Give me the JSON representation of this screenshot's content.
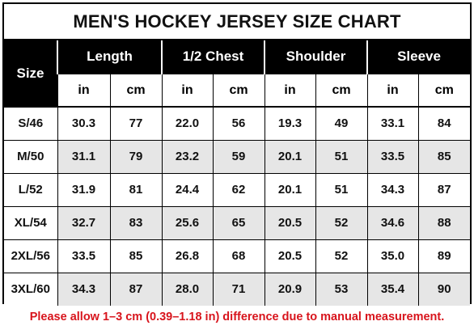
{
  "title": "MEN'S HOCKEY JERSEY SIZE CHART",
  "header": {
    "size_label": "Size",
    "groups": [
      "Length",
      "1/2 Chest",
      "Shoulder",
      "Sleeve"
    ],
    "units": [
      "in",
      "cm",
      "in",
      "cm",
      "in",
      "cm",
      "in",
      "cm"
    ]
  },
  "rows": [
    {
      "size": "S/46",
      "values": [
        "30.3",
        "77",
        "22.0",
        "56",
        "19.3",
        "49",
        "33.1",
        "84"
      ]
    },
    {
      "size": "M/50",
      "values": [
        "31.1",
        "79",
        "23.2",
        "59",
        "20.1",
        "51",
        "33.5",
        "85"
      ]
    },
    {
      "size": "L/52",
      "values": [
        "31.9",
        "81",
        "24.4",
        "62",
        "20.1",
        "51",
        "34.3",
        "87"
      ]
    },
    {
      "size": "XL/54",
      "values": [
        "32.7",
        "83",
        "25.6",
        "65",
        "20.5",
        "52",
        "34.6",
        "88"
      ]
    },
    {
      "size": "2XL/56",
      "values": [
        "33.5",
        "85",
        "26.8",
        "68",
        "20.5",
        "52",
        "35.0",
        "89"
      ]
    },
    {
      "size": "3XL/60",
      "values": [
        "34.3",
        "87",
        "28.0",
        "71",
        "20.9",
        "53",
        "35.4",
        "90"
      ]
    }
  ],
  "note": "Please allow 1–3 cm (0.39–1.18 in) difference due to manual measurement.",
  "colors": {
    "header_bg": "#000000",
    "header_text": "#ffffff",
    "row_even_bg": "#ffffff",
    "row_odd_bg": "#e6e6e6",
    "note_color": "#d8141c"
  }
}
